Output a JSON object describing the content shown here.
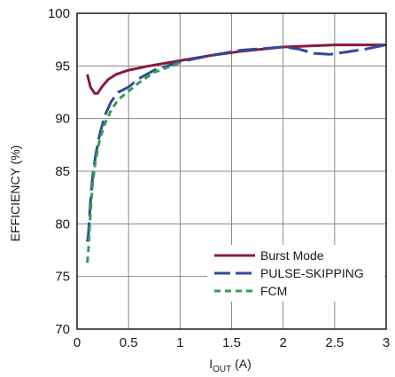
{
  "chart_data": {
    "type": "line",
    "xlabel_main": "I",
    "xlabel_sub": "OUT",
    "xlabel_unit": " (A)",
    "ylabel": "EFFICIENCY (%)",
    "xlim": [
      0,
      3
    ],
    "ylim": [
      70,
      100
    ],
    "x_ticks": [
      0,
      0.5,
      1,
      1.5,
      2,
      2.5,
      3
    ],
    "x_tick_labels": [
      "0",
      "0.5",
      "1",
      "1.5",
      "2",
      "2.5",
      "3"
    ],
    "y_ticks": [
      70,
      75,
      80,
      85,
      90,
      95,
      100
    ],
    "y_tick_labels": [
      "70",
      "75",
      "80",
      "85",
      "90",
      "95",
      "100"
    ],
    "grid": true,
    "legend_position": "bottom-right",
    "series": [
      {
        "name": "Burst Mode",
        "color": "#8b1a3a",
        "dash": "solid",
        "x": [
          0.1,
          0.13,
          0.17,
          0.2,
          0.24,
          0.3,
          0.38,
          0.5,
          0.7,
          1.0,
          1.3,
          1.6,
          2.0,
          2.5,
          3.0
        ],
        "y": [
          94.2,
          93.0,
          92.4,
          92.4,
          93.0,
          93.7,
          94.2,
          94.6,
          95.0,
          95.5,
          96.0,
          96.4,
          96.8,
          97.0,
          97.0
        ]
      },
      {
        "name": "PULSE-SKIPPING",
        "color": "#2e4a9b",
        "dash": "long",
        "x": [
          0.1,
          0.11,
          0.13,
          0.15,
          0.18,
          0.22,
          0.27,
          0.33,
          0.4,
          0.5,
          0.6,
          0.75,
          1.0,
          1.3,
          1.6,
          2.0,
          2.15,
          2.3,
          2.45,
          2.6,
          2.8,
          3.0
        ],
        "y": [
          78.3,
          79.0,
          82.0,
          84.5,
          86.5,
          88.5,
          90.3,
          91.6,
          92.5,
          93.0,
          93.8,
          94.6,
          95.4,
          96.0,
          96.5,
          96.8,
          96.6,
          96.2,
          96.1,
          96.3,
          96.6,
          97.0
        ]
      },
      {
        "name": "FCM",
        "color": "#2e9e57",
        "dash": "short",
        "x": [
          0.1,
          0.11,
          0.13,
          0.15,
          0.18,
          0.22,
          0.27,
          0.33,
          0.4,
          0.5,
          0.6,
          0.75,
          1.0
        ],
        "y": [
          76.3,
          77.5,
          81.0,
          83.8,
          86.0,
          88.0,
          89.5,
          90.8,
          91.8,
          92.6,
          93.4,
          94.4,
          95.3
        ]
      }
    ]
  }
}
